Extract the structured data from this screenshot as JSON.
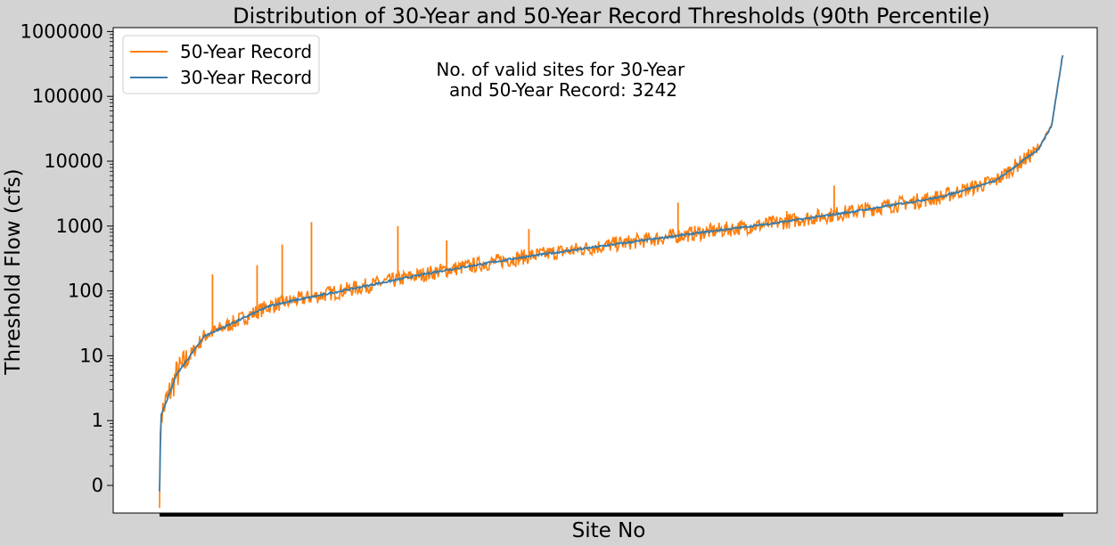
{
  "chart_data": {
    "type": "line",
    "title": "Distribution of 30-Year and 50-Year Record Thresholds (90th Percentile)",
    "xlabel": "Site No",
    "ylabel": "Threshold Flow (cfs)",
    "yscale": "log",
    "y_tick_labels": [
      "0",
      "1",
      "10",
      "100",
      "1000",
      "10000",
      "100000",
      "1000000"
    ],
    "y_tick_exponents": [
      -1,
      0,
      1,
      2,
      3,
      4,
      5,
      6
    ],
    "annotation": "No. of valid sites for 30-Year\n and 50-Year Record: 3242",
    "n_sites": 3242,
    "legend": {
      "position": "top-left",
      "entries": [
        "50-Year Record",
        "30-Year Record"
      ]
    },
    "series": [
      {
        "name": "50-Year Record",
        "color": "#ff7f0e",
        "key_points": [
          [
            0,
            0.08
          ],
          [
            5,
            1.2
          ],
          [
            60,
            5
          ],
          [
            160,
            20
          ],
          [
            400,
            60
          ],
          [
            700,
            110
          ],
          [
            1000,
            200
          ],
          [
            1300,
            330
          ],
          [
            1600,
            500
          ],
          [
            1900,
            750
          ],
          [
            2200,
            1100
          ],
          [
            2500,
            1700
          ],
          [
            2800,
            2800
          ],
          [
            3000,
            5000
          ],
          [
            3150,
            15000
          ],
          [
            3200,
            35000
          ],
          [
            3242,
            500000
          ]
        ],
        "spikes": [
          [
            190,
            180
          ],
          [
            350,
            250
          ],
          [
            440,
            520
          ],
          [
            545,
            1150
          ],
          [
            855,
            1000
          ],
          [
            1030,
            600
          ],
          [
            1325,
            900
          ],
          [
            1860,
            2300
          ],
          [
            2250,
            1700
          ],
          [
            2420,
            4200
          ]
        ]
      },
      {
        "name": "30-Year Record",
        "color": "#3a7ca8",
        "key_points": [
          [
            0,
            0.08
          ],
          [
            5,
            1.2
          ],
          [
            60,
            5
          ],
          [
            160,
            20
          ],
          [
            400,
            60
          ],
          [
            700,
            110
          ],
          [
            1000,
            200
          ],
          [
            1300,
            330
          ],
          [
            1600,
            500
          ],
          [
            1900,
            750
          ],
          [
            2200,
            1100
          ],
          [
            2500,
            1700
          ],
          [
            2800,
            2800
          ],
          [
            3000,
            5000
          ],
          [
            3150,
            15000
          ],
          [
            3200,
            35000
          ],
          [
            3242,
            500000
          ]
        ]
      }
    ]
  }
}
